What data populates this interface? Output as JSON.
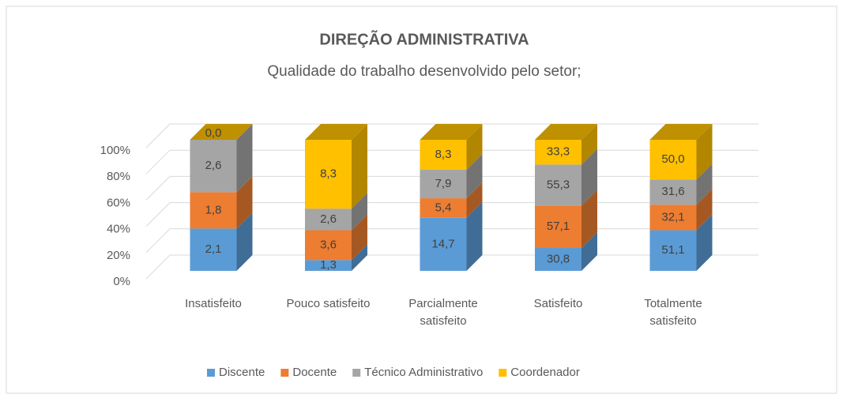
{
  "chart_data": {
    "type": "bar",
    "stacking": "percent",
    "title": "DIREÇÃO ADMINISTRATIVA",
    "subtitle": "Qualidade do trabalho desenvolvido  pelo setor;",
    "categories": [
      "Insatisfeito",
      "Pouco satisfeito",
      "Parcialmente satisfeito",
      "Satisfeito",
      "Totalmente satisfeito"
    ],
    "series": [
      {
        "name": "Discente",
        "color": "#5b9bd5",
        "values": [
          2.1,
          1.3,
          14.7,
          30.8,
          51.1
        ],
        "value_labels": [
          "2,1",
          "1,3",
          "14,7",
          "30,8",
          "51,1"
        ]
      },
      {
        "name": "Docente",
        "color": "#ed7d31",
        "values": [
          1.8,
          3.6,
          5.4,
          57.1,
          32.1
        ],
        "value_labels": [
          "1,8",
          "3,6",
          "5,4",
          "57,1",
          "32,1"
        ]
      },
      {
        "name": "Técnico Administrativo",
        "color": "#a5a5a5",
        "values": [
          2.6,
          2.6,
          7.9,
          55.3,
          31.6
        ],
        "value_labels": [
          "2,6",
          "2,6",
          "7,9",
          "55,3",
          "31,6"
        ]
      },
      {
        "name": "Coordenador",
        "color": "#ffc000",
        "values": [
          0.0,
          8.3,
          8.3,
          33.3,
          50.0
        ],
        "value_labels": [
          "0,0",
          "8,3",
          "8,3",
          "33,3",
          "50,0"
        ]
      }
    ],
    "ylim": [
      0,
      100
    ],
    "yticks": [
      {
        "value": 0,
        "label": "0%"
      },
      {
        "value": 20,
        "label": "20%"
      },
      {
        "value": 40,
        "label": "40%"
      },
      {
        "value": 60,
        "label": "60%"
      },
      {
        "value": 80,
        "label": "80%"
      },
      {
        "value": 100,
        "label": "100%"
      }
    ],
    "grid": true,
    "legend": "bottom"
  }
}
